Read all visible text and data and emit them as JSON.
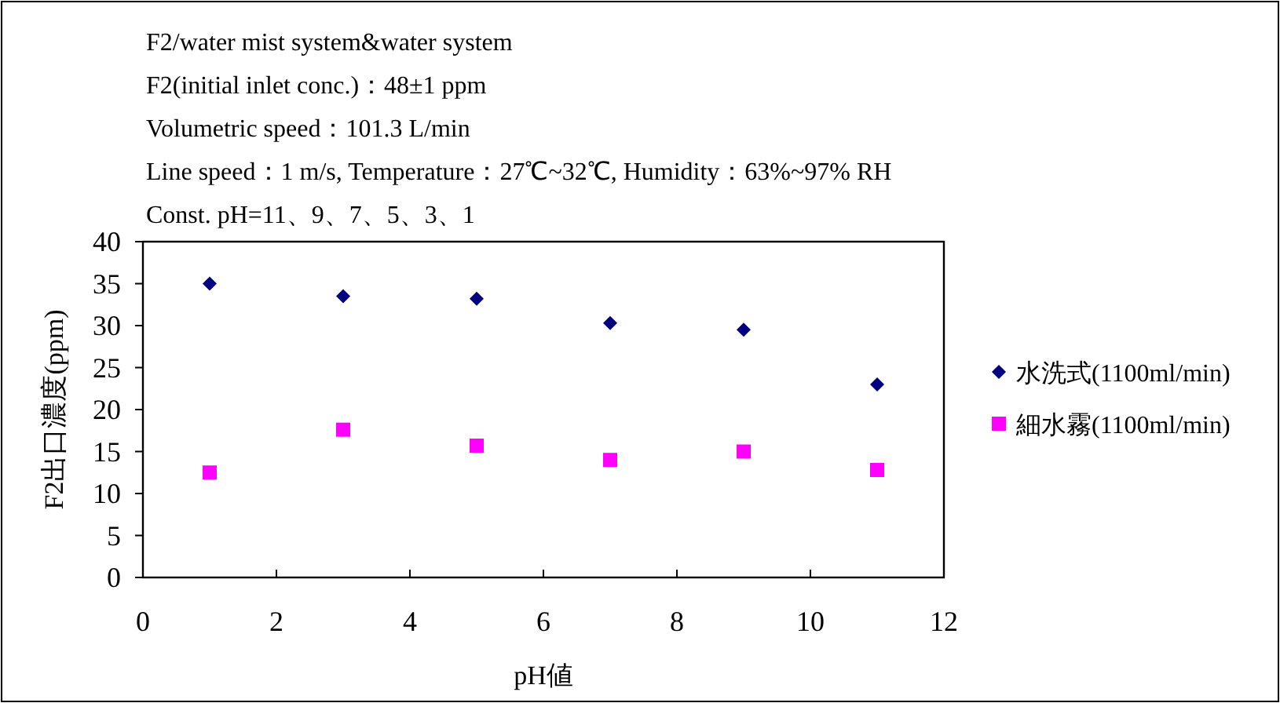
{
  "chart_data": {
    "type": "scatter",
    "title": "F2/water mist system&water system",
    "annotations": [
      "F2(initial inlet conc.)：48±1 ppm",
      "Volumetric speed：101.3 L/min",
      "Line speed：1 m/s, Temperature：27℃~32℃, Humidity：63%~97% RH",
      "Const. pH=11、9、7、5、3、1"
    ],
    "xlabel": "pH値",
    "ylabel": "F2出口濃度(ppm)",
    "x": [
      1,
      3,
      5,
      7,
      9,
      11
    ],
    "series": [
      {
        "name": "水洗式(1100ml/min)",
        "color": "#000080",
        "marker": "diamond",
        "values": [
          35,
          33.5,
          33.2,
          30.3,
          29.5,
          23
        ]
      },
      {
        "name": "細水霧(1100ml/min)",
        "color": "#ff00ff",
        "marker": "square",
        "values": [
          12.5,
          17.6,
          15.7,
          14,
          15,
          12.8
        ]
      }
    ],
    "xlim": [
      0,
      12
    ],
    "xticks": [
      0,
      2,
      4,
      6,
      8,
      10,
      12
    ],
    "ylim": [
      0,
      40
    ],
    "yticks": [
      0,
      5,
      10,
      15,
      20,
      25,
      30,
      35,
      40
    ],
    "grid": false,
    "legend": "right"
  }
}
